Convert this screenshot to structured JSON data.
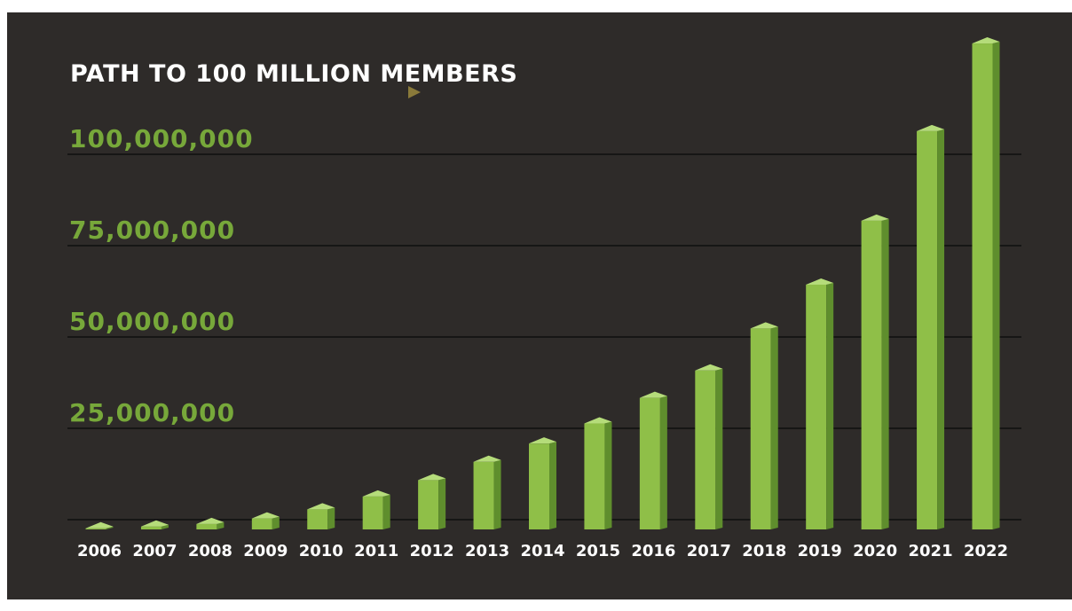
{
  "chart_data": {
    "type": "bar",
    "title": "PATH TO 100 MILLION MEMBERS",
    "categories": [
      "2006",
      "2007",
      "2008",
      "2009",
      "2010",
      "2011",
      "2012",
      "2013",
      "2014",
      "2015",
      "2016",
      "2017",
      "2018",
      "2019",
      "2020",
      "2021",
      "2022"
    ],
    "values": [
      300000,
      800000,
      1500000,
      3000000,
      5500000,
      9000000,
      13500000,
      18500000,
      23500000,
      29000000,
      36000000,
      43500000,
      55000000,
      67000000,
      84500000,
      109000000,
      133000000
    ],
    "yticks": [
      {
        "value": 25000000,
        "label": "25,000,000"
      },
      {
        "value": 50000000,
        "label": "50,000,000"
      },
      {
        "value": 75000000,
        "label": "75,000,000"
      },
      {
        "value": 100000000,
        "label": "100,000,000"
      }
    ],
    "xlabel": "",
    "ylabel": "",
    "grid": true,
    "colors": {
      "background": "#2e2b29",
      "bar_front": "#8fbf48",
      "bar_side": "#5f8e2d",
      "bar_top": "#b5dc7a",
      "axis_label": "#77a83a",
      "title": "#ffffff",
      "arrow_start": "#2d4f7a",
      "arrow_end": "#8a7a3a"
    }
  }
}
